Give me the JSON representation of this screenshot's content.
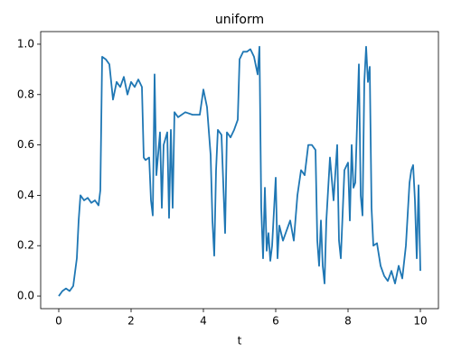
{
  "chart_data": {
    "type": "line",
    "title": "uniform",
    "xlabel": "t",
    "x": [
      0,
      0.1,
      0.2,
      0.3,
      0.4,
      0.5,
      0.55,
      0.6,
      0.7,
      0.8,
      0.9,
      1.0,
      1.1,
      1.15,
      1.2,
      1.3,
      1.4,
      1.5,
      1.6,
      1.7,
      1.8,
      1.9,
      2.0,
      2.1,
      2.2,
      2.3,
      2.35,
      2.4,
      2.5,
      2.55,
      2.6,
      2.65,
      2.7,
      2.8,
      2.85,
      2.9,
      3.0,
      3.05,
      3.1,
      3.15,
      3.2,
      3.3,
      3.5,
      3.7,
      3.9,
      4.0,
      4.1,
      4.2,
      4.25,
      4.3,
      4.35,
      4.4,
      4.5,
      4.6,
      4.65,
      4.75,
      4.85,
      4.95,
      5.0,
      5.1,
      5.2,
      5.3,
      5.4,
      5.5,
      5.55,
      5.6,
      5.65,
      5.7,
      5.75,
      5.8,
      5.85,
      5.9,
      6.0,
      6.05,
      6.1,
      6.2,
      6.3,
      6.4,
      6.5,
      6.6,
      6.7,
      6.8,
      6.9,
      7.0,
      7.1,
      7.15,
      7.2,
      7.25,
      7.3,
      7.35,
      7.4,
      7.5,
      7.6,
      7.7,
      7.75,
      7.8,
      7.9,
      8.0,
      8.05,
      8.1,
      8.15,
      8.2,
      8.3,
      8.35,
      8.4,
      8.45,
      8.5,
      8.55,
      8.6,
      8.65,
      8.7,
      8.8,
      8.9,
      9.0,
      9.1,
      9.2,
      9.3,
      9.4,
      9.5,
      9.6,
      9.7,
      9.75,
      9.8,
      9.85,
      9.9,
      9.95,
      10.0
    ],
    "series": [
      {
        "name": "uniform",
        "color": "#1f77b4",
        "values": [
          0.0,
          0.02,
          0.03,
          0.02,
          0.04,
          0.15,
          0.3,
          0.4,
          0.38,
          0.39,
          0.37,
          0.38,
          0.36,
          0.42,
          0.95,
          0.94,
          0.92,
          0.78,
          0.85,
          0.83,
          0.87,
          0.8,
          0.85,
          0.83,
          0.86,
          0.83,
          0.55,
          0.54,
          0.55,
          0.38,
          0.32,
          0.88,
          0.48,
          0.65,
          0.35,
          0.6,
          0.65,
          0.31,
          0.66,
          0.35,
          0.73,
          0.71,
          0.73,
          0.72,
          0.72,
          0.82,
          0.75,
          0.56,
          0.3,
          0.16,
          0.5,
          0.66,
          0.64,
          0.25,
          0.65,
          0.63,
          0.66,
          0.7,
          0.94,
          0.97,
          0.97,
          0.98,
          0.95,
          0.88,
          0.99,
          0.35,
          0.15,
          0.43,
          0.18,
          0.25,
          0.14,
          0.2,
          0.47,
          0.15,
          0.28,
          0.22,
          0.26,
          0.3,
          0.22,
          0.4,
          0.5,
          0.48,
          0.6,
          0.6,
          0.58,
          0.22,
          0.12,
          0.3,
          0.12,
          0.05,
          0.3,
          0.55,
          0.38,
          0.6,
          0.22,
          0.15,
          0.5,
          0.53,
          0.3,
          0.6,
          0.43,
          0.45,
          0.92,
          0.4,
          0.32,
          0.85,
          0.99,
          0.85,
          0.91,
          0.35,
          0.2,
          0.21,
          0.12,
          0.08,
          0.06,
          0.1,
          0.05,
          0.12,
          0.07,
          0.2,
          0.45,
          0.5,
          0.52,
          0.38,
          0.15,
          0.44,
          0.1
        ]
      }
    ],
    "xlim": [
      -0.5,
      10.5
    ],
    "xticks": [
      0,
      2,
      4,
      6,
      8,
      10
    ],
    "ylim": [
      -0.05,
      1.05
    ],
    "yticks": [
      {
        "value": 0.0,
        "label": "0.0"
      },
      0.2,
      0.4,
      0.6,
      0.8,
      {
        "value": 1.0,
        "label": "1.0"
      }
    ]
  }
}
